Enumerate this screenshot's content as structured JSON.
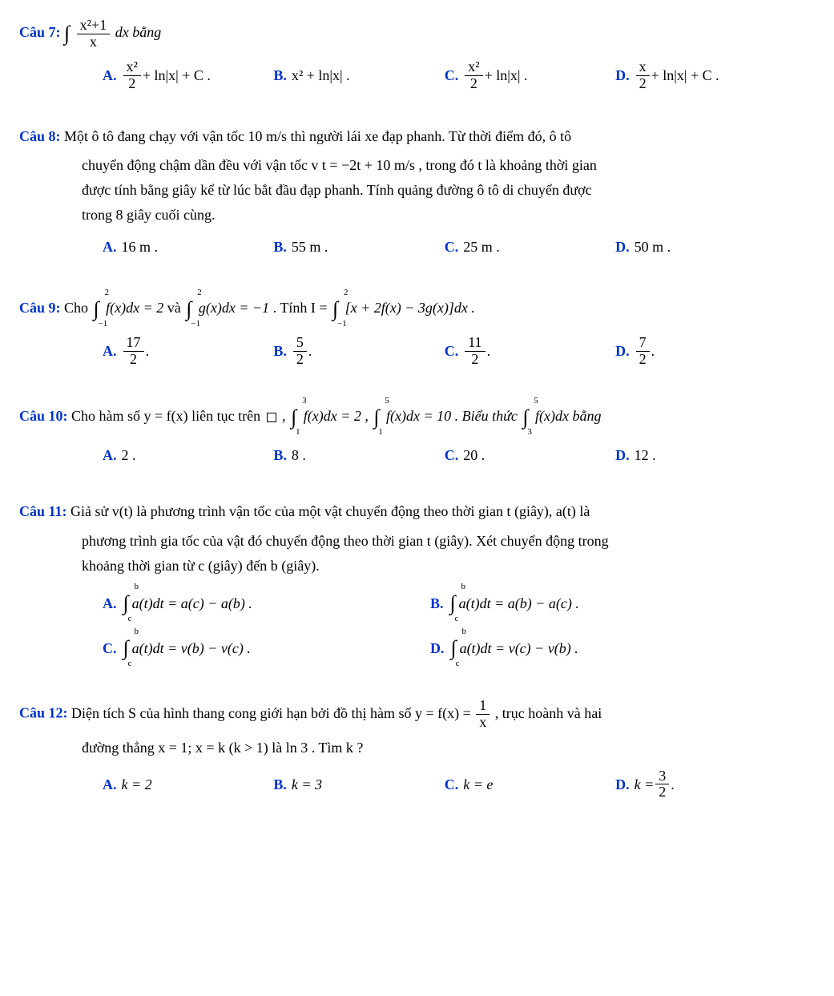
{
  "colors": {
    "label": "#0033cc",
    "text": "#000000",
    "background": "#ffffff"
  },
  "font": {
    "family": "Times New Roman",
    "size_pt": 13
  },
  "q7": {
    "label": "Câu 7:",
    "stem_prefix": "∫",
    "stem_frac_num": "x²+1",
    "stem_frac_den": "x",
    "stem_suffix": "dx bằng",
    "A_label": "A.",
    "A_frac_num": "x²",
    "A_frac_den": "2",
    "A_tail": "+ ln|x| + C .",
    "B_label": "B.",
    "B_text": "x² + ln|x| .",
    "C_label": "C.",
    "C_frac_num": "x²",
    "C_frac_den": "2",
    "C_tail": "+ ln|x| .",
    "D_label": "D.",
    "D_frac_num": "x",
    "D_frac_den": "2",
    "D_tail": "+ ln|x| + C ."
  },
  "q8": {
    "label": "Câu 8:",
    "line1": "Một ô tô đang chạy với vận tốc 10  m/s  thì người lái xe đạp phanh. Từ thời điểm đó, ô tô",
    "line2": "chuyển động chậm dần đều với vận tốc v t = −2t + 10  m/s , trong đó t là khoảng thời gian",
    "line3": "được tính bằng giây kể từ lúc bắt đầu đạp phanh. Tính quảng đường ô tô di chuyển được",
    "line4": "trong 8 giây cuối cùng.",
    "A_label": "A.",
    "A_text": "16 m .",
    "B_label": "B.",
    "B_text": "55 m .",
    "C_label": "C.",
    "C_text": "25 m .",
    "D_label": "D.",
    "D_text": "50 m ."
  },
  "q9": {
    "label": "Câu 9:",
    "stem_p1": "Cho ",
    "int1_sup": "2",
    "int1_sub": "−1",
    "int1_body": "f(x)dx = 2",
    "stem_p2": " và ",
    "int2_sup": "2",
    "int2_sub": "−1",
    "int2_body": "g(x)dx = −1",
    "stem_p3": ". Tính I = ",
    "int3_sup": "2",
    "int3_sub": "−1",
    "int3_body": "[x + 2f(x) − 3g(x)]dx .",
    "A_label": "A.",
    "A_num": "17",
    "A_den": "2",
    "A_tail": ".",
    "B_label": "B.",
    "B_num": "5",
    "B_den": "2",
    "B_tail": ".",
    "C_label": "C.",
    "C_num": "11",
    "C_den": "2",
    "C_tail": ".",
    "D_label": "D.",
    "D_num": "7",
    "D_den": "2",
    "D_tail": "."
  },
  "q10": {
    "label": "Câu 10:",
    "stem_p1": "Cho hàm số  y = f(x) liên tục trên ",
    "stem_p2": " ,  ",
    "int1_sup": "3",
    "int1_sub": "1",
    "int1_body": "f(x)dx = 2 ,  ",
    "int2_sup": "5",
    "int2_sub": "1",
    "int2_body": "f(x)dx = 10 . Biểu thức ",
    "int3_sup": "5",
    "int3_sub": "3",
    "int3_body": "f(x)dx bằng",
    "A_label": "A.",
    "A_text": "2 .",
    "B_label": "B.",
    "B_text": "8 .",
    "C_label": "C.",
    "C_text": "20 .",
    "D_label": "D.",
    "D_text": "12 ."
  },
  "q11": {
    "label": "Câu 11:",
    "line1": "Giả sử v(t) là phương trình vận tốc của một vật chuyển động theo thời gian t (giây), a(t) là",
    "line2": "phương trình gia tốc của vật đó chuyển động theo thời gian t (giây). Xét chuyển động trong",
    "line3": "khoảng thời gian từ c (giây) đến b (giây).",
    "A_label": "A.",
    "A_sup": "b",
    "A_sub": "c",
    "A_body": "a(t)dt = a(c) − a(b) .",
    "B_label": "B.",
    "B_sup": "b",
    "B_sub": "c",
    "B_body": "a(t)dt = a(b) − a(c) .",
    "C_label": "C.",
    "C_sup": "b",
    "C_sub": "c",
    "C_body": "a(t)dt = v(b) − v(c) .",
    "D_label": "D.",
    "D_sup": "b",
    "D_sub": "c",
    "D_body": "a(t)dt = v(c) − v(b) ."
  },
  "q12": {
    "label": "Câu 12:",
    "line1_p1": "Diện tích S của hình thang cong giới hạn bởi đồ thị hàm số  y = f(x) = ",
    "line1_frac_num": "1",
    "line1_frac_den": "x",
    "line1_p2": ", trục hoành và hai",
    "line2": "đường thẳng  x = 1; x = k (k > 1)  là  ln 3 . Tìm k ?",
    "A_label": "A.",
    "A_text": "k = 2",
    "B_label": "B.",
    "B_text": "k = 3",
    "C_label": "C.",
    "C_text": "k = e",
    "D_label": "D.",
    "D_pre": "k = ",
    "D_num": "3",
    "D_den": "2",
    "D_tail": "."
  }
}
